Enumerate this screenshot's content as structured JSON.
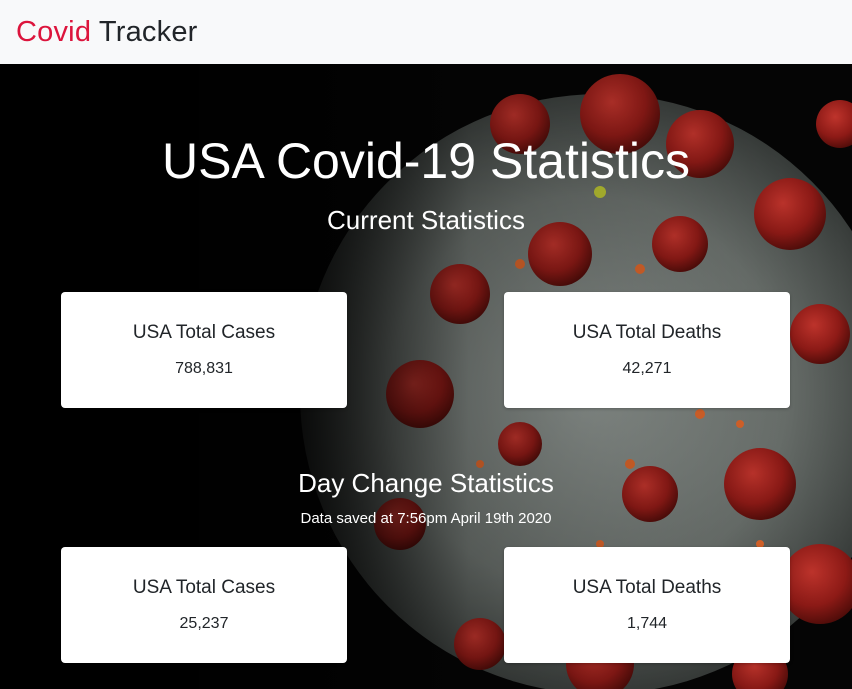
{
  "navbar": {
    "brand_accent": "Covid",
    "brand_rest": " Tracker",
    "accent_color": "#dc143c"
  },
  "hero": {
    "background": "coronavirus-particle-image",
    "title": "USA Covid-19 Statistics"
  },
  "current": {
    "heading": "Current Statistics",
    "cards": [
      {
        "label": "USA Total Cases",
        "value": "788,831"
      },
      {
        "label": "USA Total Deaths",
        "value": "42,271"
      }
    ]
  },
  "day_change": {
    "heading": "Day Change Statistics",
    "note": "Data saved at 7:56pm April 19th 2020",
    "cards": [
      {
        "label": "USA Total Cases",
        "value": "25,237"
      },
      {
        "label": "USA Total Deaths",
        "value": "1,744"
      }
    ]
  }
}
